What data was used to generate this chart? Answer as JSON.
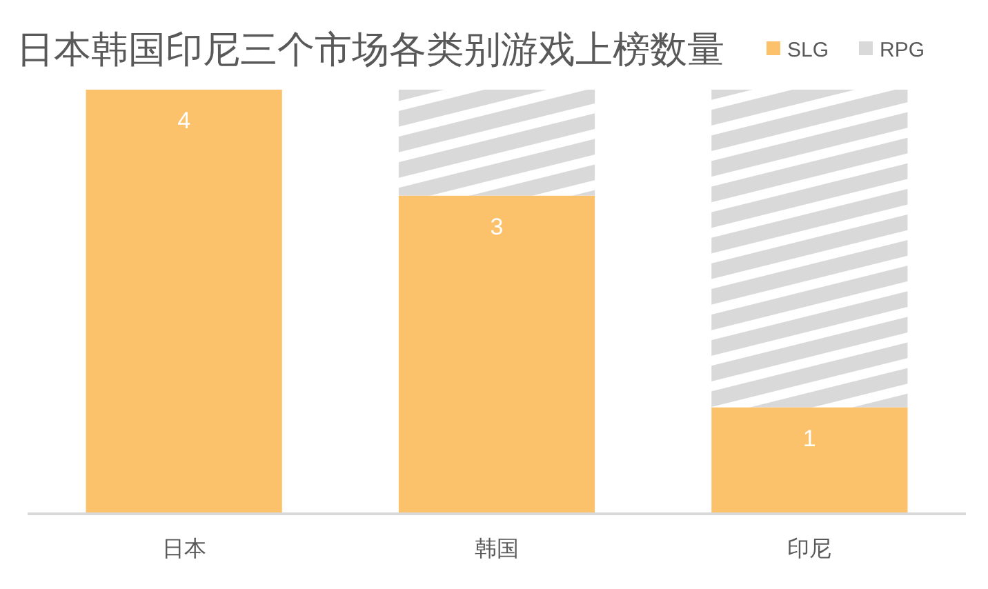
{
  "chart_data": {
    "type": "bar",
    "title": "日本韩国印尼三个市场各类别游戏上榜数量",
    "categories": [
      "日本",
      "韩国",
      "印尼"
    ],
    "stacked": true,
    "legend": "top right",
    "series": [
      {
        "name": "SLG",
        "color": "#fcc26b",
        "values": [
          4,
          3,
          1
        ],
        "value_labels": [
          "4",
          "3",
          "1"
        ]
      },
      {
        "name": "RPG",
        "color": "#d9d9d9",
        "values": [
          0,
          1,
          3
        ]
      }
    ]
  }
}
